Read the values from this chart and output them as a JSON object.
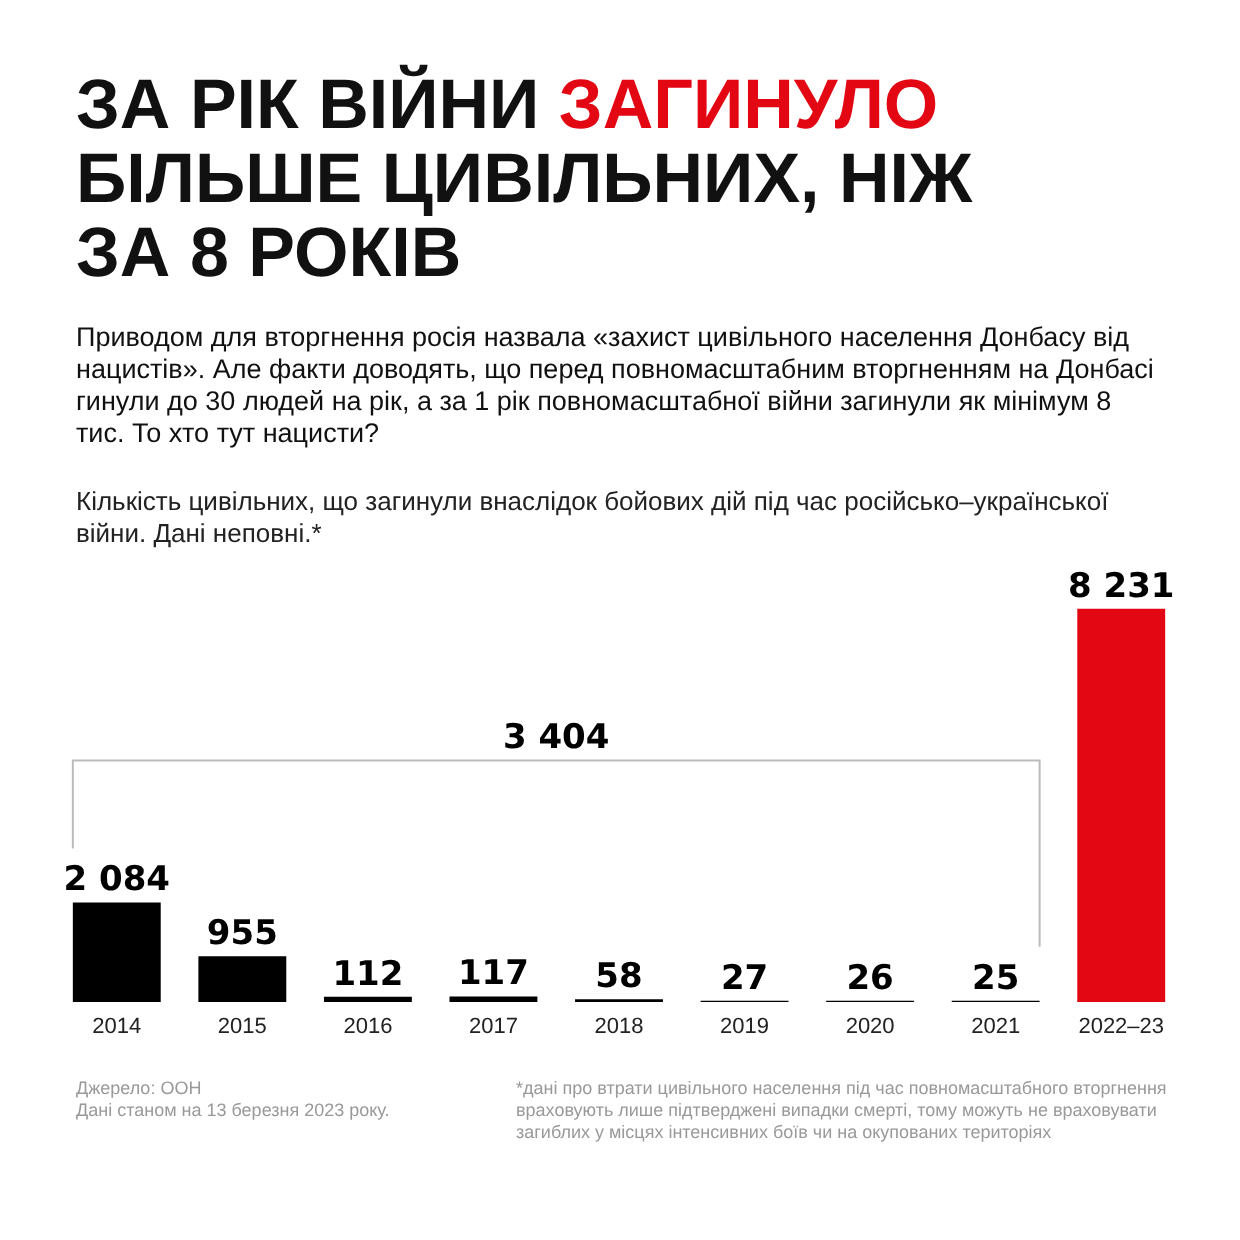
{
  "chart_data": {
    "type": "bar",
    "title": "ЗА РІК ВІЙНИ ЗАГИНУЛО БІЛЬШЕ ЦИВІЛЬНИХ, НІЖ ЗА 8 РОКІВ",
    "subtitle": "Приводом для вторгнення росія назвала «захист цивільного населення Донбасу від нацистів». Але факти доводять, що перед повномасштабним вторгненням на Донбасі гинули до 30 людей на рік, а за 1 рік повномасштабної війни загинули як мінімум 8 тис. То хто тут нацисти?",
    "categories": [
      "2014",
      "2015",
      "2016",
      "2017",
      "2018",
      "2019",
      "2020",
      "2021",
      "2022–23"
    ],
    "values": [
      2084,
      955,
      112,
      117,
      58,
      27,
      26,
      25,
      8231
    ],
    "value_labels": [
      "2 084",
      "955",
      "112",
      "117",
      "58",
      "27",
      "26",
      "25",
      "8 231"
    ],
    "colors": [
      "#000000",
      "#000000",
      "#000000",
      "#000000",
      "#000000",
      "#000000",
      "#000000",
      "#000000",
      "#e30613"
    ],
    "tick_labels": "x",
    "annotations": [
      "Кількість цивільних, що загинули внаслідок бойових дій під час російсько–української війни. Дані неповні.*",
      "3 404",
      "Джерело: ООН\nДані станом на 13 березня 2023 року.",
      "*дані про втрати цивільного населення під час повномасштабного вторгнення враховують лише підтверджені випадки смерті, тому можуть не враховувати загиблих у місцях інтенсивних боїв чи на окупованих територіях"
    ]
  }
}
